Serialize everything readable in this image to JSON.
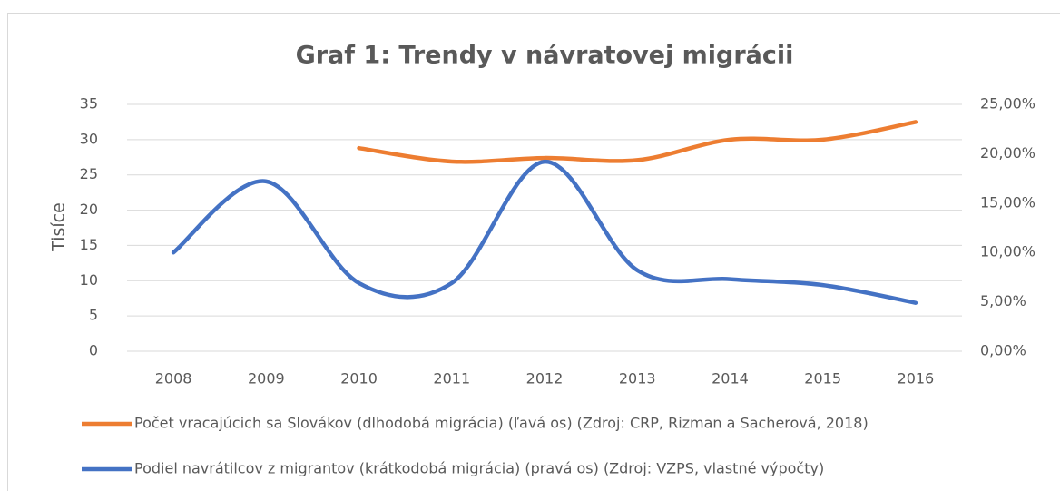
{
  "chart_data": {
    "type": "line",
    "title": "Graf 1: Trendy v návratovej migrácii",
    "y_label": "Tisíce",
    "categories": [
      "2008",
      "2009",
      "2010",
      "2011",
      "2012",
      "2013",
      "2014",
      "2015",
      "2016"
    ],
    "series": [
      {
        "name": "Počet vracajúcich sa Slovákov (dlhodobá migrácia) (ľavá os) (Zdroj: CRP, Rizman a Sacherová, 2018)",
        "color": "#ed7d31",
        "axis": "y",
        "values": [
          null,
          null,
          28.8,
          26.9,
          27.4,
          27.1,
          30,
          30,
          32.5
        ]
      },
      {
        "name": "Podiel navrátilcov z migrantov (krátkodobá migrácia) (pravá os) (Zdroj: VZPS, vlastné výpočty)",
        "color": "#4472c4",
        "axis": "y2",
        "values": [
          10.0,
          17.2,
          6.9,
          6.9,
          19.2,
          8.2,
          7.3,
          6.7,
          4.9
        ]
      }
    ],
    "ylim": [
      0,
      35
    ],
    "yticks": [
      0,
      5,
      10,
      15,
      20,
      25,
      30,
      35
    ],
    "y2lim": [
      0,
      25
    ],
    "y2ticks": [
      {
        "value": 0,
        "label": "0,00%"
      },
      {
        "value": 5,
        "label": "5,00%"
      },
      {
        "value": 10,
        "label": "10,00%"
      },
      {
        "value": 15,
        "label": "15,00%"
      },
      {
        "value": 20,
        "label": "20,00%"
      },
      {
        "value": 25,
        "label": "25,00%"
      }
    ],
    "grid": true,
    "smooth": true,
    "legend": "bottom"
  }
}
